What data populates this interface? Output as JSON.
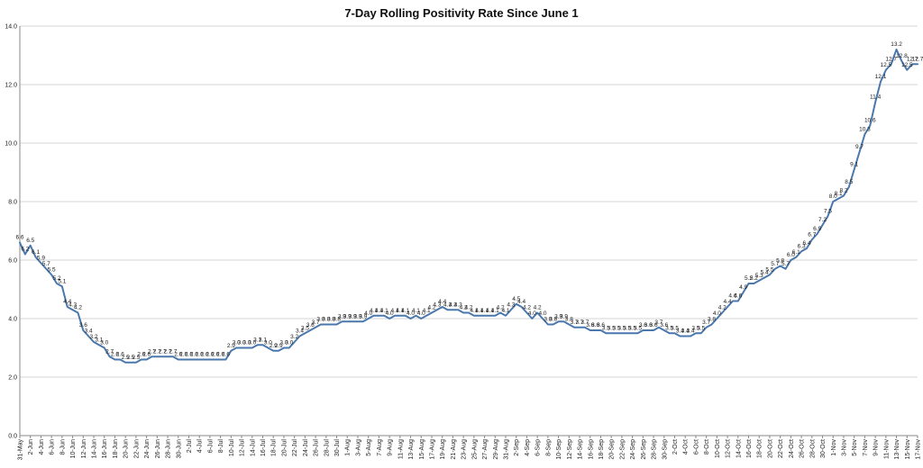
{
  "chart_data": {
    "type": "line",
    "title": "7-Day Rolling Positivity Rate Since June 1",
    "xlabel": "",
    "ylabel": "",
    "ylim": [
      0,
      14
    ],
    "yticks": [
      "0.0",
      "2.0",
      "4.0",
      "6.0",
      "8.0",
      "10.0",
      "12.0",
      "14.0"
    ],
    "grid": true,
    "legend": "none",
    "colors": {
      "line": "#4a78ad",
      "grid": "#d4d4d4",
      "axis": "#888888",
      "text": "#222222"
    },
    "x": [
      "31-May",
      "1-Jun",
      "2-Jun",
      "3-Jun",
      "4-Jun",
      "5-Jun",
      "6-Jun",
      "7-Jun",
      "8-Jun",
      "9-Jun",
      "10-Jun",
      "11-Jun",
      "12-Jun",
      "13-Jun",
      "14-Jun",
      "15-Jun",
      "16-Jun",
      "17-Jun",
      "18-Jun",
      "19-Jun",
      "20-Jun",
      "21-Jun",
      "22-Jun",
      "23-Jun",
      "24-Jun",
      "25-Jun",
      "26-Jun",
      "27-Jun",
      "28-Jun",
      "29-Jun",
      "30-Jun",
      "1-Jul",
      "2-Jul",
      "3-Jul",
      "4-Jul",
      "5-Jul",
      "6-Jul",
      "7-Jul",
      "8-Jul",
      "9-Jul",
      "10-Jul",
      "11-Jul",
      "12-Jul",
      "13-Jul",
      "14-Jul",
      "15-Jul",
      "16-Jul",
      "17-Jul",
      "18-Jul",
      "19-Jul",
      "20-Jul",
      "21-Jul",
      "22-Jul",
      "23-Jul",
      "24-Jul",
      "25-Jul",
      "26-Jul",
      "27-Jul",
      "28-Jul",
      "29-Jul",
      "30-Jul",
      "31-Jul",
      "1-Aug",
      "2-Aug",
      "3-Aug",
      "4-Aug",
      "5-Aug",
      "6-Aug",
      "7-Aug",
      "8-Aug",
      "9-Aug",
      "10-Aug",
      "11-Aug",
      "12-Aug",
      "13-Aug",
      "14-Aug",
      "15-Aug",
      "16-Aug",
      "17-Aug",
      "18-Aug",
      "19-Aug",
      "20-Aug",
      "21-Aug",
      "22-Aug",
      "23-Aug",
      "24-Aug",
      "25-Aug",
      "26-Aug",
      "27-Aug",
      "28-Aug",
      "29-Aug",
      "30-Aug",
      "31-Aug",
      "1-Sep",
      "2-Sep",
      "3-Sep",
      "4-Sep",
      "5-Sep",
      "6-Sep",
      "7-Sep",
      "8-Sep",
      "9-Sep",
      "10-Sep",
      "11-Sep",
      "12-Sep",
      "13-Sep",
      "14-Sep",
      "15-Sep",
      "16-Sep",
      "17-Sep",
      "18-Sep",
      "19-Sep",
      "20-Sep",
      "21-Sep",
      "22-Sep",
      "23-Sep",
      "24-Sep",
      "25-Sep",
      "26-Sep",
      "27-Sep",
      "28-Sep",
      "29-Sep",
      "30-Sep",
      "1-Oct",
      "2-Oct",
      "3-Oct",
      "4-Oct",
      "5-Oct",
      "6-Oct",
      "7-Oct",
      "8-Oct",
      "9-Oct",
      "10-Oct",
      "11-Oct",
      "12-Oct",
      "13-Oct",
      "14-Oct",
      "15-Oct",
      "16-Oct",
      "17-Oct",
      "18-Oct",
      "19-Oct",
      "20-Oct",
      "21-Oct",
      "22-Oct",
      "23-Oct",
      "24-Oct",
      "25-Oct",
      "26-Oct",
      "27-Oct",
      "28-Oct",
      "29-Oct",
      "30-Oct",
      "31-Oct",
      "1-Nov",
      "2-Nov",
      "3-Nov",
      "4-Nov",
      "5-Nov",
      "6-Nov",
      "7-Nov",
      "8-Nov",
      "9-Nov",
      "10-Nov",
      "11-Nov",
      "12-Nov",
      "13-Nov",
      "14-Nov",
      "15-Nov",
      "16-Nov",
      "17-Nov"
    ],
    "x_tick_labels": [
      "31-May",
      "2-Jun",
      "4-Jun",
      "6-Jun",
      "8-Jun",
      "10-Jun",
      "12-Jun",
      "14-Jun",
      "16-Jun",
      "18-Jun",
      "20-Jun",
      "22-Jun",
      "24-Jun",
      "26-Jun",
      "28-Jun",
      "30-Jun",
      "2-Jul",
      "4-Jul",
      "6-Jul",
      "8-Jul",
      "10-Jul",
      "12-Jul",
      "14-Jul",
      "16-Jul",
      "18-Jul",
      "20-Jul",
      "22-Jul",
      "24-Jul",
      "26-Jul",
      "28-Jul",
      "30-Jul",
      "1-Aug",
      "3-Aug",
      "5-Aug",
      "7-Aug",
      "9-Aug",
      "11-Aug",
      "13-Aug",
      "15-Aug",
      "17-Aug",
      "19-Aug",
      "21-Aug",
      "23-Aug",
      "25-Aug",
      "27-Aug",
      "29-Aug",
      "31-Aug",
      "2-Sep",
      "4-Sep",
      "6-Sep",
      "8-Sep",
      "10-Sep",
      "12-Sep",
      "14-Sep",
      "16-Sep",
      "18-Sep",
      "20-Sep",
      "22-Sep",
      "24-Sep",
      "26-Sep",
      "28-Sep",
      "30-Sep",
      "2-Oct",
      "4-Oct",
      "6-Oct",
      "8-Oct",
      "10-Oct",
      "12-Oct",
      "14-Oct",
      "16-Oct",
      "18-Oct",
      "20-Oct",
      "22-Oct",
      "24-Oct",
      "26-Oct",
      "28-Oct",
      "30-Oct",
      "1-Nov",
      "3-Nov",
      "5-Nov",
      "7-Nov",
      "9-Nov",
      "11-Nov",
      "13-Nov",
      "15-Nov",
      "17-Nov"
    ],
    "series": [
      {
        "values": [
          6.6,
          6.2,
          6.5,
          6.1,
          5.9,
          5.7,
          5.5,
          5.2,
          5.1,
          4.4,
          4.3,
          4.2,
          3.6,
          3.4,
          3.2,
          3.1,
          3.0,
          2.7,
          2.6,
          2.6,
          2.5,
          2.5,
          2.5,
          2.6,
          2.6,
          2.7,
          2.7,
          2.7,
          2.7,
          2.7,
          2.6,
          2.6,
          2.6,
          2.6,
          2.6,
          2.6,
          2.6,
          2.6,
          2.6,
          2.6,
          2.9,
          3.0,
          3.0,
          3.0,
          3.0,
          3.1,
          3.1,
          3.0,
          2.9,
          2.9,
          3.0,
          3.0,
          3.2,
          3.4,
          3.5,
          3.6,
          3.7,
          3.8,
          3.8,
          3.8,
          3.8,
          3.9,
          3.9,
          3.9,
          3.9,
          3.9,
          4.0,
          4.1,
          4.1,
          4.1,
          4.0,
          4.1,
          4.1,
          4.1,
          4.0,
          4.1,
          4.0,
          4.1,
          4.2,
          4.3,
          4.4,
          4.3,
          4.3,
          4.3,
          4.2,
          4.2,
          4.1,
          4.1,
          4.1,
          4.1,
          4.1,
          4.2,
          4.1,
          4.3,
          4.5,
          4.4,
          4.2,
          4.0,
          4.2,
          4.0,
          3.8,
          3.8,
          3.9,
          3.9,
          3.8,
          3.7,
          3.7,
          3.7,
          3.6,
          3.6,
          3.6,
          3.5,
          3.5,
          3.5,
          3.5,
          3.5,
          3.5,
          3.5,
          3.6,
          3.6,
          3.6,
          3.7,
          3.6,
          3.5,
          3.5,
          3.4,
          3.4,
          3.4,
          3.5,
          3.5,
          3.7,
          3.8,
          4.0,
          4.2,
          4.4,
          4.6,
          4.6,
          4.9,
          5.2,
          5.2,
          5.3,
          5.4,
          5.5,
          5.7,
          5.8,
          5.7,
          6.0,
          6.1,
          6.3,
          6.4,
          6.7,
          6.9,
          7.2,
          7.5,
          8.0,
          8.1,
          8.2,
          8.5,
          9.1,
          9.7,
          10.3,
          10.6,
          11.4,
          12.1,
          12.5,
          12.7,
          13.2,
          12.8,
          12.5,
          12.7,
          12.7
        ]
      }
    ],
    "data_labels": [
      "6.6",
      "6.2",
      "6.5",
      "6.1",
      "5.9",
      "5.7",
      "5.5",
      "5.2",
      "5.1",
      "4.4",
      "4.3",
      "4.2",
      "3.6",
      "3.4",
      "3.2",
      "3.1",
      "3.0",
      "2.7",
      "2.6",
      "2.6",
      "2.5",
      "2.5",
      "2.5",
      "2.6",
      "2.6",
      "2.7",
      "2.7",
      "2.7",
      "2.7",
      "2.7",
      "2.6",
      "2.6",
      "2.6",
      "2.6",
      "2.6",
      "2.6",
      "2.6",
      "2.6",
      "2.6",
      "2.6",
      "2.9",
      "3.0",
      "3.0",
      "3.0",
      "3.0",
      "3.1",
      "3.1",
      "3.0",
      "2.9",
      "2.9",
      "3.0",
      "3.0",
      "3.2",
      "3.4",
      "3.5",
      "3.6",
      "3.7",
      "3.8",
      "3.8",
      "3.8",
      "3.8",
      "3.9",
      "3.9",
      "3.9",
      "3.9",
      "3.9",
      "4.0",
      "4.1",
      "4.1",
      "4.1",
      "4.0",
      "4.1",
      "4.1",
      "4.1",
      "4.0",
      "4.1",
      "4.0",
      "4.1",
      "4.2",
      "4.3",
      "4.4",
      "4.3",
      "4.3",
      "4.3",
      "4.2",
      "4.2",
      "4.1",
      "4.1",
      "4.1",
      "4.1",
      "4.1",
      "4.2",
      "4.1",
      "4.3",
      "4.5",
      "4.4",
      "4.2",
      "4.0",
      "4.2",
      "4.0",
      "3.8",
      "3.8",
      "3.9",
      "3.9",
      "3.8",
      "3.7",
      "3.7",
      "3.7",
      "3.6",
      "3.6",
      "3.6",
      "3.5",
      "3.5",
      "3.5",
      "3.5",
      "3.5",
      "3.5",
      "3.5",
      "3.6",
      "3.6",
      "3.6",
      "3.7",
      "3.6",
      "3.5",
      "3.5",
      "3.4",
      "3.4",
      "3.4",
      "3.5",
      "3.5",
      "3.7",
      "3.8",
      "4.0",
      "4.2",
      "4.4",
      "4.6",
      "4.6",
      "4.9",
      "5.2",
      "5.2",
      "5.3",
      "5.4",
      "5.5",
      "5.7",
      "5.8",
      "5.7",
      "6.0",
      "6.1",
      "6.3",
      "6.4",
      "6.7",
      "6.9",
      "7.2",
      "7.5",
      "8.0",
      "8.1",
      "8.2",
      "8.5",
      "9.1",
      "9.7",
      "10.3",
      "10.6",
      "11.4",
      "12.1",
      "12.5",
      "12.7",
      "13.2",
      "12.8",
      "12.5",
      "12.7",
      "12.7"
    ]
  }
}
